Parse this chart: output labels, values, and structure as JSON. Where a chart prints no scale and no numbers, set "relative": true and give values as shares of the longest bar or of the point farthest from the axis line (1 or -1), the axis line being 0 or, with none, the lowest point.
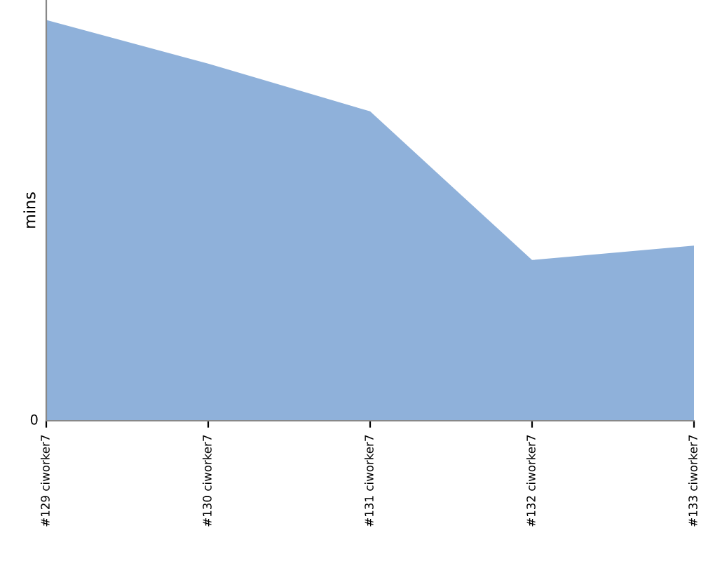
{
  "chart_data": {
    "type": "area",
    "relative": true,
    "ylabel": "mins",
    "annotations": [
      "0"
    ],
    "categories": [
      "#129 ciworker7",
      "#130 ciworker7",
      "#131 ciworker7",
      "#132 ciworker7",
      "#133 ciworker7"
    ],
    "series": [
      {
        "color": "#8fb1da",
        "values": [
          1,
          0.891,
          0.772,
          0.401,
          0.437
        ]
      }
    ],
    "grid": false,
    "legend": false
  }
}
